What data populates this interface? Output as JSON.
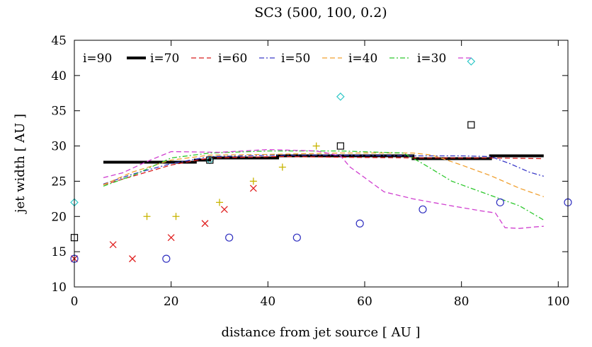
{
  "chart_data": {
    "type": "line",
    "title": "SC3 (500, 100, 0.2)",
    "xlabel": "distance from jet source [ AU ]",
    "ylabel": "jet width [ AU ]",
    "xlim": [
      0,
      102
    ],
    "ylim": [
      10,
      45
    ],
    "xticks": [
      0,
      20,
      40,
      60,
      80,
      100
    ],
    "yticks": [
      10,
      15,
      20,
      25,
      30,
      35,
      40,
      45
    ],
    "legend_position": "top",
    "series": [
      {
        "name": "i=90",
        "style": "none",
        "color": "#000000",
        "x": [],
        "y": []
      },
      {
        "name": "i=70",
        "style": "thick-solid",
        "color": "#000000",
        "x": [
          6,
          25,
          25,
          28,
          28,
          42,
          42,
          55,
          55,
          70,
          70,
          86,
          86,
          97
        ],
        "y": [
          27.7,
          27.7,
          28.0,
          28.0,
          28.3,
          28.3,
          28.6,
          28.6,
          28.6,
          28.6,
          28.2,
          28.2,
          28.6,
          28.6
        ]
      },
      {
        "name": "i=60",
        "style": "dashed",
        "color": "#d81e1e",
        "x": [
          6,
          20,
          28,
          42,
          55,
          70,
          86,
          97
        ],
        "y": [
          24.5,
          27.3,
          28.3,
          28.5,
          28.4,
          28.3,
          28.3,
          28.2
        ]
      },
      {
        "name": "i=50",
        "style": "dashdot",
        "color": "#3b3bc8",
        "x": [
          6,
          12,
          20,
          28,
          42,
          55,
          70,
          80,
          86,
          90,
          94,
          97
        ],
        "y": [
          24.6,
          26.0,
          27.5,
          28.5,
          28.7,
          28.7,
          28.6,
          28.6,
          28.5,
          27.5,
          26.3,
          25.7
        ]
      },
      {
        "name": "i=40",
        "style": "dashed",
        "color": "#f0a030",
        "x": [
          6,
          12,
          20,
          28,
          40,
          55,
          70,
          74,
          80,
          86,
          92,
          97
        ],
        "y": [
          24.5,
          26.3,
          28.0,
          28.7,
          28.8,
          29.0,
          29.0,
          28.7,
          27.3,
          25.8,
          24.0,
          22.8
        ]
      },
      {
        "name": "i=30",
        "style": "dashdot",
        "color": "#2ec82e",
        "x": [
          6,
          12,
          20,
          28,
          40,
          55,
          68,
          72,
          78,
          86,
          92,
          97
        ],
        "y": [
          24.3,
          25.8,
          28.3,
          29.0,
          29.3,
          29.3,
          29.0,
          27.5,
          25.0,
          23.0,
          21.5,
          19.5
        ]
      },
      {
        "name": "",
        "style": "dashed",
        "color": "#d040d0",
        "x": [
          6,
          10,
          15,
          20,
          30,
          40,
          50,
          55,
          57,
          60,
          64,
          70,
          78,
          84,
          87,
          89,
          92,
          95,
          97
        ],
        "y": [
          25.5,
          26.2,
          27.8,
          29.2,
          29.1,
          29.5,
          29.3,
          28.6,
          27.0,
          25.5,
          23.5,
          22.5,
          21.5,
          20.8,
          20.5,
          18.4,
          18.3,
          18.5,
          18.6
        ]
      }
    ],
    "markers": [
      {
        "name": "diamonds",
        "symbol": "diamond",
        "color": "#30c8c8",
        "x": [
          0,
          28,
          55,
          82
        ],
        "y": [
          22,
          28,
          37,
          42
        ]
      },
      {
        "name": "squares",
        "symbol": "square",
        "color": "#000000",
        "x": [
          0,
          28,
          55,
          82
        ],
        "y": [
          17,
          28,
          30,
          33
        ]
      },
      {
        "name": "plus",
        "symbol": "plus",
        "color": "#c8b400",
        "x": [
          15,
          21,
          30,
          37,
          43,
          50
        ],
        "y": [
          20,
          20,
          22,
          25,
          27,
          30
        ]
      },
      {
        "name": "crosses",
        "symbol": "cross",
        "color": "#e02020",
        "x": [
          0,
          8,
          12,
          20,
          27,
          31,
          37
        ],
        "y": [
          14,
          16,
          14,
          17,
          19,
          21,
          24
        ]
      },
      {
        "name": "circles",
        "symbol": "circle",
        "color": "#3030c0",
        "x": [
          0,
          19,
          32,
          46,
          59,
          72,
          88,
          102
        ],
        "y": [
          14,
          14,
          17,
          17,
          19,
          21,
          22,
          22
        ]
      }
    ]
  }
}
